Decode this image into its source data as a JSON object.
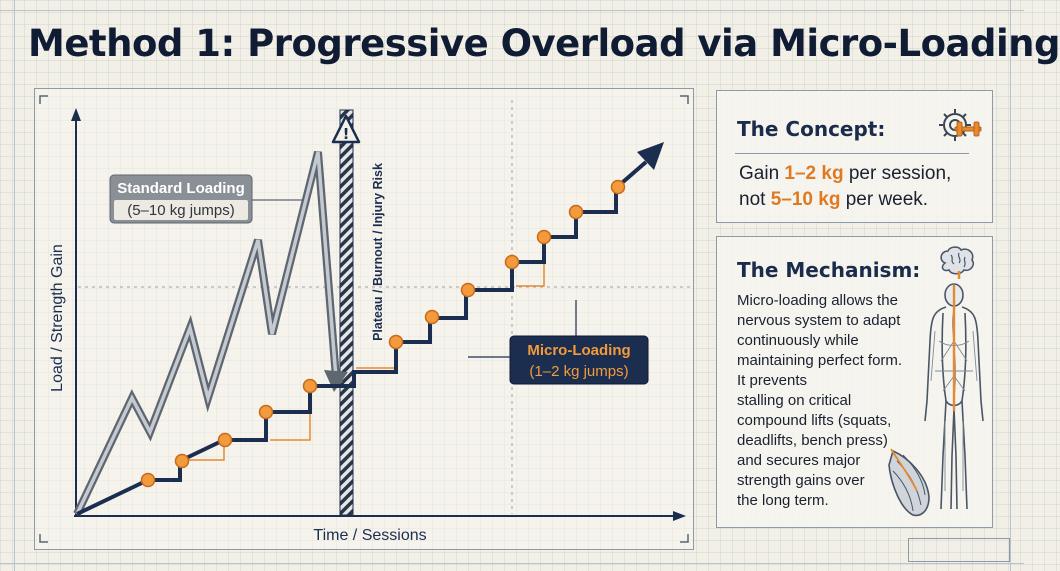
{
  "title": "Method 1: Progressive Overload via Micro-Loading",
  "colors": {
    "navy": "#1c2e4f",
    "orange": "#e58a2e",
    "gray_line": "#5e6670",
    "gray_fill": "#9aa3ac",
    "label_dark": "#1c2e4f",
    "label_gray": "#8a9096"
  },
  "chart": {
    "y_axis_label": "Load / Strength Gain",
    "x_axis_label": "Time / Sessions",
    "barrier_label": "Plateau / Burnout / Injury Risk",
    "warning_icon": "warning-triangle-icon",
    "standard_label": {
      "title": "Standard Loading",
      "subtitle": "(5–10 kg jumps)"
    },
    "micro_label": {
      "title": "Micro-Loading",
      "subtitle": "(1–2 kg jumps)"
    }
  },
  "concept": {
    "heading": "The Concept:",
    "icon": "gear-dumbbell-icon",
    "line1_pre": "Gain ",
    "line1_hl": "1–2 kg",
    "line1_post": " per session,",
    "line2_pre": "not ",
    "line2_hl": "5–10 kg",
    "line2_post": " per week."
  },
  "mechanism": {
    "heading": "The Mechanism:",
    "icons": [
      "brain-icon",
      "nervous-system-body-icon",
      "muscle-icon"
    ],
    "lines": [
      "Micro-loading allows the",
      "nervous system to adapt",
      "continuously while",
      "maintaining perfect form.",
      "It prevents",
      "stalling on critical",
      "compound lifts (squats,",
      "deadlifts, bench press)",
      "and secures major",
      "strength gains over",
      "the long term."
    ]
  }
}
